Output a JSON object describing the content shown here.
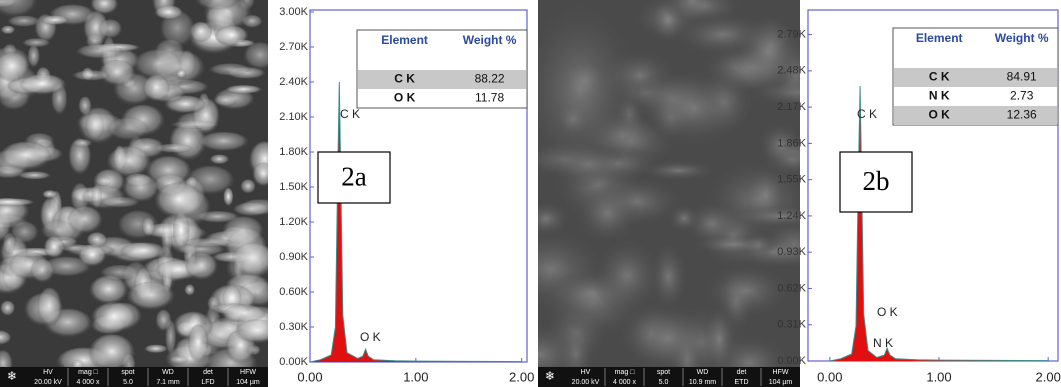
{
  "panels": [
    {
      "label": "2a",
      "sem_info": {
        "headers": [
          "HV",
          "mag □",
          "spot",
          "WD",
          "det",
          "HFW"
        ],
        "values": [
          "20.00 kV",
          "4 000 x",
          "5.0",
          "7.1 mm",
          "LFD",
          "104 µm"
        ]
      },
      "table": {
        "header": [
          "Element",
          "Weight %"
        ],
        "rows": [
          [
            "C K",
            88.22
          ],
          [
            "O K",
            11.78
          ]
        ]
      }
    },
    {
      "label": "2b",
      "sem_info": {
        "headers": [
          "HV",
          "mag □",
          "spot",
          "WD",
          "det",
          "HFW"
        ],
        "values": [
          "20.00 kV",
          "4 000 x",
          "5.0",
          "10.9 mm",
          "ETD",
          "104 µm"
        ]
      },
      "table": {
        "header": [
          "Element",
          "Weight %"
        ],
        "rows": [
          [
            "C K",
            84.91
          ],
          [
            "N K",
            2.73
          ],
          [
            "O K",
            12.36
          ]
        ]
      }
    }
  ],
  "chart_data": [
    {
      "type": "area",
      "xlim": [
        0,
        2.05
      ],
      "ylim": [
        0,
        3000
      ],
      "xticks": [
        {
          "value": 0,
          "label": "0.00"
        },
        {
          "value": 1,
          "label": "1.00"
        },
        {
          "value": 2,
          "label": "2.00"
        }
      ],
      "yticks": [
        {
          "value": 0,
          "label": "0.00K"
        },
        {
          "value": 300,
          "label": "0.30K"
        },
        {
          "value": 600,
          "label": "0.60K"
        },
        {
          "value": 900,
          "label": "0.90K"
        },
        {
          "value": 1200,
          "label": "1.20K"
        },
        {
          "value": 1500,
          "label": "1.50K"
        },
        {
          "value": 1800,
          "label": "1.80K"
        },
        {
          "value": 2100,
          "label": "2.10K"
        },
        {
          "value": 2400,
          "label": "2.40K"
        },
        {
          "value": 2700,
          "label": "2.70K"
        },
        {
          "value": 3000,
          "label": "3.00K"
        }
      ],
      "x": [
        0,
        0.1,
        0.2,
        0.24,
        0.26,
        0.277,
        0.29,
        0.31,
        0.35,
        0.45,
        0.5,
        0.525,
        0.55,
        0.6,
        0.8,
        1.0,
        1.5,
        2.0
      ],
      "series": [
        {
          "color": "#e01010",
          "line_color": "#3c8c8c",
          "values": [
            0,
            20,
            60,
            300,
            1500,
            2400,
            1600,
            400,
            80,
            30,
            50,
            110,
            50,
            20,
            10,
            8,
            5,
            3
          ]
        }
      ],
      "annotations": [
        "C K",
        "O K"
      ]
    },
    {
      "type": "area",
      "xlim": [
        -0.2,
        2.09
      ],
      "ylim": [
        0,
        3000
      ],
      "xticks": [
        {
          "value": 0,
          "label": "0.00"
        },
        {
          "value": 1,
          "label": "1.00"
        },
        {
          "value": 2,
          "label": "2.00"
        }
      ],
      "yticks": [
        {
          "value": 0,
          "label": "0.00K"
        },
        {
          "value": 310,
          "label": "0.31K"
        },
        {
          "value": 620,
          "label": "0.62K"
        },
        {
          "value": 930,
          "label": "0.93K"
        },
        {
          "value": 1240,
          "label": "1.24K"
        },
        {
          "value": 1550,
          "label": "1.55K"
        },
        {
          "value": 1860,
          "label": "1.86K"
        },
        {
          "value": 2170,
          "label": "2.17K"
        },
        {
          "value": 2480,
          "label": "2.48K"
        },
        {
          "value": 2790,
          "label": "2.79K"
        }
      ],
      "x": [
        0,
        0.1,
        0.2,
        0.24,
        0.26,
        0.277,
        0.29,
        0.31,
        0.35,
        0.39,
        0.43,
        0.5,
        0.525,
        0.55,
        0.6,
        0.8,
        1.0,
        1.5,
        2.0
      ],
      "series": [
        {
          "color": "#e01010",
          "line_color": "#3c8c8c",
          "values": [
            0,
            20,
            60,
            300,
            1500,
            2350,
            1600,
            400,
            90,
            60,
            30,
            50,
            110,
            50,
            20,
            10,
            8,
            5,
            3
          ]
        }
      ],
      "annotations": [
        "C K",
        "O K",
        "N K"
      ]
    }
  ]
}
